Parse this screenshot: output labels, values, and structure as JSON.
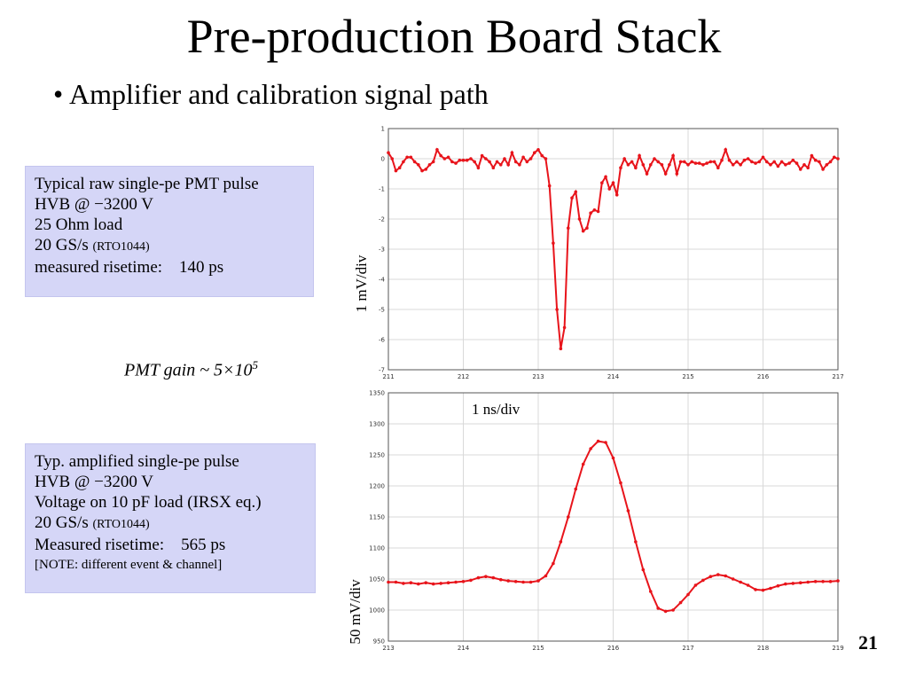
{
  "slide": {
    "title": "Pre-production Board Stack",
    "bullet": "Amplifier and calibration signal path",
    "page_number": "21"
  },
  "box_raw": {
    "line1": "Typical raw single-pe PMT pulse",
    "line2": "HVB @ −3200 V",
    "line3": "25 Ohm load",
    "line4_main": "20 GS/s",
    "line4_small": "(RTO1044)",
    "line5_label": "measured risetime:",
    "line5_value": "140 ps"
  },
  "gain": {
    "text": "PMT gain ~ 5×10",
    "exponent": "5"
  },
  "box_amp": {
    "line1": "Typ. amplified single-pe pulse",
    "line2": "HVB @ −3200 V",
    "line3": "Voltage on 10 pF load (IRSX eq.)",
    "line4_main": "20 GS/s",
    "line4_small": "(RTO1044)",
    "line5_label": "Measured risetime:",
    "line5_value": "565 ps",
    "note": "[NOTE: different event & channel]"
  },
  "labels": {
    "top_ylabel": "1 mV/div",
    "bottom_ylabel": "50 mV/div",
    "time_div": "1 ns/div"
  },
  "colors": {
    "trace": "#e8141b",
    "box_bg": "#d5d6f7"
  },
  "chart_data": [
    {
      "type": "line",
      "xlim": [
        211,
        217
      ],
      "ylim": [
        -7,
        1
      ],
      "xticks": [
        211,
        212,
        213,
        214,
        215,
        216,
        217
      ],
      "yticks": [
        1,
        0,
        -1,
        -2,
        -3,
        -4,
        -5,
        -6,
        -7
      ],
      "x": [
        211.0,
        211.05,
        211.1,
        211.15,
        211.2,
        211.25,
        211.3,
        211.35,
        211.4,
        211.45,
        211.5,
        211.55,
        211.6,
        211.65,
        211.7,
        211.75,
        211.8,
        211.85,
        211.9,
        211.95,
        212.0,
        212.05,
        212.1,
        212.15,
        212.2,
        212.25,
        212.3,
        212.35,
        212.4,
        212.45,
        212.5,
        212.55,
        212.6,
        212.65,
        212.7,
        212.75,
        212.8,
        212.85,
        212.9,
        212.95,
        213.0,
        213.05,
        213.1,
        213.15,
        213.2,
        213.25,
        213.3,
        213.35,
        213.4,
        213.45,
        213.5,
        213.55,
        213.6,
        213.65,
        213.7,
        213.75,
        213.8,
        213.85,
        213.9,
        213.95,
        214.0,
        214.05,
        214.1,
        214.15,
        214.2,
        214.25,
        214.3,
        214.35,
        214.4,
        214.45,
        214.5,
        214.55,
        214.6,
        214.65,
        214.7,
        214.75,
        214.8,
        214.85,
        214.9,
        214.95,
        215.0,
        215.05,
        215.1,
        215.15,
        215.2,
        215.25,
        215.3,
        215.35,
        215.4,
        215.45,
        215.5,
        215.55,
        215.6,
        215.65,
        215.7,
        215.75,
        215.8,
        215.85,
        215.9,
        215.95,
        216.0,
        216.05,
        216.1,
        216.15,
        216.2,
        216.25,
        216.3,
        216.35,
        216.4,
        216.45,
        216.5,
        216.55,
        216.6,
        216.65,
        216.7,
        216.75,
        216.8,
        216.85,
        216.9,
        216.95,
        217.0
      ],
      "y": [
        0.2,
        0,
        -0.4,
        -0.3,
        -0.1,
        0.05,
        0.05,
        -0.1,
        -0.2,
        -0.4,
        -0.35,
        -0.2,
        -0.1,
        0.3,
        0.1,
        0,
        0.05,
        -0.1,
        -0.15,
        -0.05,
        -0.05,
        -0.05,
        0,
        -0.1,
        -0.3,
        0.1,
        0,
        -0.1,
        -0.3,
        -0.1,
        -0.2,
        0,
        -0.2,
        0.2,
        -0.1,
        -0.2,
        0.05,
        -0.1,
        0,
        0.2,
        0.3,
        0.1,
        0,
        -0.9,
        -2.8,
        -5.0,
        -6.3,
        -5.6,
        -2.3,
        -1.3,
        -1.1,
        -2.0,
        -2.4,
        -2.3,
        -1.8,
        -1.7,
        -1.75,
        -0.8,
        -0.6,
        -1.0,
        -0.8,
        -1.2,
        -0.3,
        0,
        -0.2,
        -0.1,
        -0.3,
        0.1,
        -0.2,
        -0.5,
        -0.2,
        0,
        -0.1,
        -0.2,
        -0.5,
        -0.2,
        0.1,
        -0.5,
        -0.1,
        -0.1,
        -0.2,
        -0.1,
        -0.15,
        -0.15,
        -0.2,
        -0.15,
        -0.1,
        -0.1,
        -0.3,
        -0.05,
        0.3,
        -0.05,
        -0.2,
        -0.1,
        -0.2,
        -0.05,
        0,
        -0.1,
        -0.15,
        -0.1,
        0.05,
        -0.1,
        -0.2,
        -0.1,
        -0.25,
        -0.1,
        -0.2,
        -0.15,
        -0.05,
        -0.15,
        -0.35,
        -0.2,
        -0.3,
        0.1,
        -0.05,
        -0.1,
        -0.35,
        -0.2,
        -0.1,
        0.05,
        0.0
      ]
    },
    {
      "type": "line",
      "xlim": [
        213,
        219
      ],
      "ylim": [
        950,
        1350
      ],
      "xticks": [
        213,
        214,
        215,
        216,
        217,
        218,
        219
      ],
      "yticks": [
        1350,
        1300,
        1250,
        1200,
        1150,
        1100,
        1050,
        1000,
        950
      ],
      "x": [
        213.0,
        213.1,
        213.2,
        213.3,
        213.4,
        213.5,
        213.6,
        213.7,
        213.8,
        213.9,
        214.0,
        214.1,
        214.2,
        214.3,
        214.4,
        214.5,
        214.6,
        214.7,
        214.8,
        214.9,
        215.0,
        215.1,
        215.2,
        215.3,
        215.4,
        215.5,
        215.6,
        215.7,
        215.8,
        215.9,
        216.0,
        216.1,
        216.2,
        216.3,
        216.4,
        216.5,
        216.6,
        216.7,
        216.8,
        216.9,
        217.0,
        217.1,
        217.2,
        217.3,
        217.4,
        217.5,
        217.6,
        217.7,
        217.8,
        217.9,
        218.0,
        218.1,
        218.2,
        218.3,
        218.4,
        218.5,
        218.6,
        218.7,
        218.8,
        218.9,
        219.0
      ],
      "y": [
        1045,
        1045,
        1043,
        1044,
        1042,
        1044,
        1042,
        1043,
        1044,
        1045,
        1046,
        1048,
        1052,
        1054,
        1052,
        1049,
        1047,
        1046,
        1045,
        1045,
        1047,
        1055,
        1075,
        1110,
        1150,
        1195,
        1235,
        1260,
        1272,
        1270,
        1245,
        1205,
        1160,
        1110,
        1065,
        1030,
        1003,
        998,
        1000,
        1012,
        1025,
        1040,
        1048,
        1054,
        1057,
        1055,
        1050,
        1045,
        1040,
        1033,
        1032,
        1035,
        1039,
        1042,
        1043,
        1044,
        1045,
        1046,
        1046,
        1046,
        1047
      ]
    }
  ]
}
